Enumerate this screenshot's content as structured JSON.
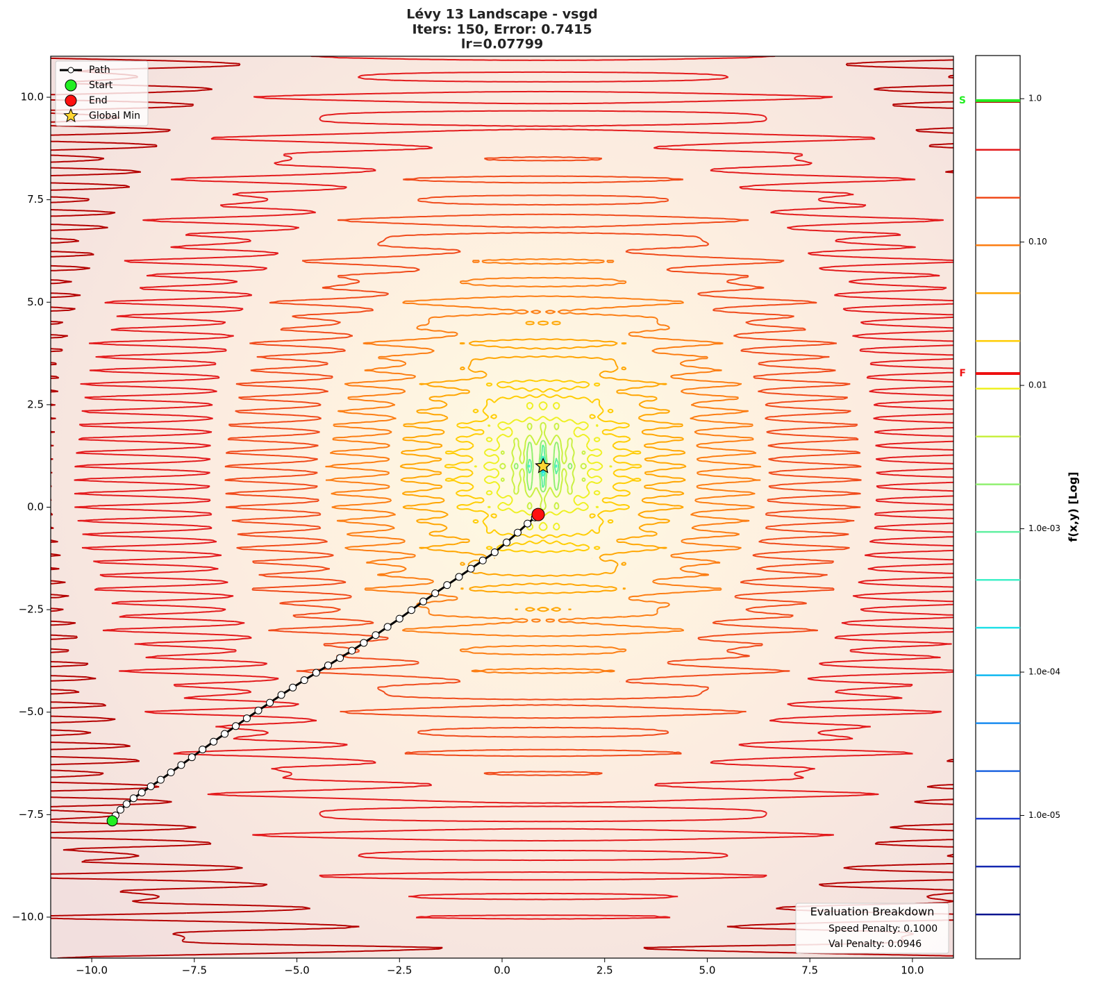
{
  "chart_data": {
    "type": "contour",
    "title": [
      "Lévy 13 Landscape - vsgd",
      "Iters: 150, Error: 0.7415",
      "lr=0.07799"
    ],
    "xlim": [
      -11,
      11
    ],
    "ylim": [
      -11,
      11
    ],
    "xticks": [
      {
        "value": -10,
        "label": "−10.0"
      },
      {
        "value": -7.5,
        "label": "−7.5"
      },
      {
        "value": -5,
        "label": "−5.0"
      },
      {
        "value": -2.5,
        "label": "−2.5"
      },
      {
        "value": 0,
        "label": "0.0"
      },
      2.5,
      {
        "value": 5,
        "label": "5.0"
      },
      7.5,
      {
        "value": 10,
        "label": "10.0"
      }
    ],
    "yticks": [
      {
        "value": 10,
        "label": "10.0"
      },
      7.5,
      {
        "value": 5,
        "label": "5.0"
      },
      2.5,
      {
        "value": 0,
        "label": "0.0"
      },
      {
        "value": -2.5,
        "label": "−2.5"
      },
      {
        "value": -5,
        "label": "−5.0"
      },
      {
        "value": -7.5,
        "label": "−7.5"
      },
      {
        "value": -10,
        "label": "−10.0"
      }
    ],
    "series": [
      {
        "name": "Path",
        "marker": "path",
        "color": "#000000",
        "marker_color": "#ffffff",
        "x": [
          -9.5,
          -9.42,
          -9.3,
          -9.15,
          -8.98,
          -8.78,
          -8.56,
          -8.32,
          -8.07,
          -7.82,
          -7.56,
          -7.3,
          -7.03,
          -6.76,
          -6.49,
          -6.22,
          -5.94,
          -5.66,
          -5.38,
          -5.1,
          -4.82,
          -4.53,
          -4.24,
          -3.95,
          -3.66,
          -3.37,
          -3.08,
          -2.79,
          -2.5,
          -2.21,
          -1.92,
          -1.63,
          -1.34,
          -1.05,
          -0.76,
          -0.47,
          -0.18,
          0.11,
          0.38,
          0.62,
          0.8,
          0.88
        ],
        "y": [
          -7.65,
          -7.52,
          -7.38,
          -7.24,
          -7.1,
          -6.96,
          -6.81,
          -6.65,
          -6.47,
          -6.29,
          -6.1,
          -5.91,
          -5.72,
          -5.53,
          -5.34,
          -5.15,
          -4.96,
          -4.77,
          -4.58,
          -4.4,
          -4.22,
          -4.04,
          -3.86,
          -3.68,
          -3.5,
          -3.31,
          -3.12,
          -2.92,
          -2.72,
          -2.51,
          -2.3,
          -2.1,
          -1.9,
          -1.7,
          -1.5,
          -1.3,
          -1.1,
          -0.86,
          -0.62,
          -0.4,
          -0.25,
          -0.18
        ]
      },
      {
        "name": "Start",
        "marker": "circle",
        "color": "#22ee22",
        "x": [
          -9.5
        ],
        "y": [
          -7.65
        ]
      },
      {
        "name": "End",
        "marker": "circle",
        "color": "#ff1111",
        "x": [
          0.88
        ],
        "y": [
          -0.18
        ]
      },
      {
        "name": "Global Min",
        "marker": "star",
        "color": "#ffd633",
        "x": [
          1
        ],
        "y": [
          1
        ]
      }
    ],
    "legend": "upper left",
    "contours": {
      "levels": [
        0.95,
        0.44,
        0.204,
        0.095,
        0.044,
        0.0204,
        0.0095,
        0.0044,
        0.00204,
        0.00095,
        0.00044,
        0.000204,
        9.5e-05,
        4.4e-05,
        2.04e-05,
        9.5e-06,
        4.4e-06,
        2.04e-06
      ],
      "colors": [
        "#b40000",
        "#e31a1c",
        "#f04a1a",
        "#fc7d12",
        "#ffa500",
        "#ffcc00",
        "#eef020",
        "#c8f040",
        "#90f070",
        "#60f0a0",
        "#40f0c8",
        "#20e0e8",
        "#10b8f0",
        "#1a8cf0",
        "#1e64e0",
        "#1e3cd0",
        "#1428b0",
        "#0a1490"
      ]
    },
    "colorbar": {
      "label": "f(x,y) [Log]",
      "log": true,
      "lim": [
        1e-06,
        2
      ],
      "ticks": [
        {
          "value": 1,
          "label": "1.0"
        },
        {
          "value": 0.1,
          "label": "0.10"
        },
        0.01,
        {
          "value": 0.001,
          "label": "1.0e-03"
        },
        {
          "value": 0.0001,
          "label": "1.0e-04"
        },
        {
          "value": 1e-05,
          "label": "1.0e-05"
        }
      ],
      "markers": [
        {
          "label": "S",
          "value": 0.97,
          "color": "#22ee22"
        },
        {
          "label": "F",
          "value": 0.0121,
          "color": "#ee1111"
        }
      ]
    },
    "annotation": {
      "title": "Evaluation Breakdown",
      "lines": [
        "Speed Penalty: 0.1000",
        "Val Penalty: 0.0946"
      ],
      "corner": "lower right"
    }
  }
}
